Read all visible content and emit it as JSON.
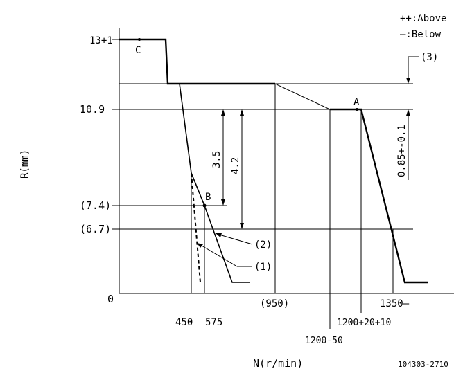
{
  "legend": {
    "above": "++:Above",
    "below": "—:Below"
  },
  "axes": {
    "y_title": "R(mm)",
    "x_title": "N(r/min)",
    "y_ticks": [
      "13+1",
      "10.9",
      "(7.4)",
      "(6.7)",
      "0"
    ],
    "x_ticks": [
      "450",
      "575",
      "(950)",
      "1200-50",
      "1200+20+10",
      "1350—"
    ]
  },
  "points": {
    "a": "A",
    "b": "B",
    "c": "C"
  },
  "dimensions": {
    "d1": "3.5",
    "d2": "4.2",
    "d3": "0.85+-0.1"
  },
  "callouts": {
    "c1": "(1)",
    "c2": "(2)",
    "c3": "(3)"
  },
  "code": "104303-2710"
}
